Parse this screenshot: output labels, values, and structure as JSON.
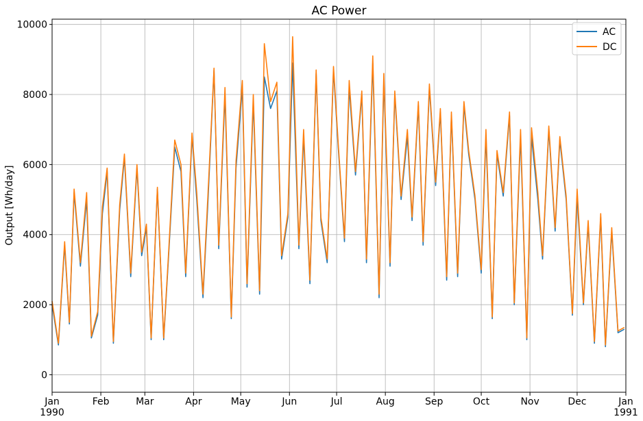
{
  "chart_data": {
    "type": "line",
    "title": "AC Power",
    "xlabel": "",
    "ylabel": "Output [Wh/day]",
    "xlim": [
      "1990-01-01",
      "1991-01-01"
    ],
    "ylim": [
      -500,
      10150
    ],
    "yticks": [
      0,
      2000,
      4000,
      6000,
      8000,
      10000
    ],
    "ytick_labels": [
      "0",
      "2000",
      "4000",
      "6000",
      "8000",
      "10000"
    ],
    "month_ticks": [
      {
        "date": "1990-01-01",
        "label": "Jan",
        "year": "1990"
      },
      {
        "date": "1990-02-01",
        "label": "Feb",
        "year": ""
      },
      {
        "date": "1990-03-01",
        "label": "Mar",
        "year": ""
      },
      {
        "date": "1990-04-01",
        "label": "Apr",
        "year": ""
      },
      {
        "date": "1990-05-01",
        "label": "May",
        "year": ""
      },
      {
        "date": "1990-06-01",
        "label": "Jun",
        "year": ""
      },
      {
        "date": "1990-07-01",
        "label": "Jul",
        "year": ""
      },
      {
        "date": "1990-08-01",
        "label": "Aug",
        "year": ""
      },
      {
        "date": "1990-09-01",
        "label": "Sep",
        "year": ""
      },
      {
        "date": "1990-10-01",
        "label": "Oct",
        "year": ""
      },
      {
        "date": "1990-11-01",
        "label": "Nov",
        "year": ""
      },
      {
        "date": "1990-12-01",
        "label": "Dec",
        "year": ""
      },
      {
        "date": "1991-01-01",
        "label": "Jan",
        "year": "1991"
      }
    ],
    "grid": true,
    "legend_position": "top-right",
    "x": [
      "1990-01-01",
      "1990-01-05",
      "1990-01-09",
      "1990-01-12",
      "1990-01-15",
      "1990-01-19",
      "1990-01-23",
      "1990-01-26",
      "1990-01-30",
      "1990-02-02",
      "1990-02-05",
      "1990-02-09",
      "1990-02-13",
      "1990-02-16",
      "1990-02-20",
      "1990-02-24",
      "1990-02-27",
      "1990-03-02",
      "1990-03-05",
      "1990-03-09",
      "1990-03-13",
      "1990-03-16",
      "1990-03-20",
      "1990-03-24",
      "1990-03-27",
      "1990-03-31",
      "1990-04-03",
      "1990-04-07",
      "1990-04-10",
      "1990-04-14",
      "1990-04-17",
      "1990-04-21",
      "1990-04-25",
      "1990-04-28",
      "1990-05-02",
      "1990-05-05",
      "1990-05-09",
      "1990-05-13",
      "1990-05-16",
      "1990-05-20",
      "1990-05-24",
      "1990-05-27",
      "1990-05-31",
      "1990-06-03",
      "1990-06-07",
      "1990-06-10",
      "1990-06-14",
      "1990-06-18",
      "1990-06-21",
      "1990-06-25",
      "1990-06-29",
      "1990-07-02",
      "1990-07-06",
      "1990-07-09",
      "1990-07-13",
      "1990-07-17",
      "1990-07-20",
      "1990-07-24",
      "1990-07-28",
      "1990-07-31",
      "1990-08-04",
      "1990-08-07",
      "1990-08-11",
      "1990-08-15",
      "1990-08-18",
      "1990-08-22",
      "1990-08-25",
      "1990-08-29",
      "1990-09-02",
      "1990-09-05",
      "1990-09-09",
      "1990-09-12",
      "1990-09-16",
      "1990-09-20",
      "1990-09-23",
      "1990-09-27",
      "1990-10-01",
      "1990-10-04",
      "1990-10-08",
      "1990-10-11",
      "1990-10-15",
      "1990-10-19",
      "1990-10-22",
      "1990-10-26",
      "1990-10-30",
      "1990-11-02",
      "1990-11-06",
      "1990-11-09",
      "1990-11-13",
      "1990-11-17",
      "1990-11-20",
      "1990-11-24",
      "1990-11-28",
      "1990-12-01",
      "1990-12-05",
      "1990-12-08",
      "1990-12-12",
      "1990-12-16",
      "1990-12-19",
      "1990-12-23",
      "1990-12-27",
      "1990-12-31"
    ],
    "series": [
      {
        "name": "AC",
        "color": "#1f77b4",
        "values": [
          2000,
          850,
          3700,
          1450,
          5200,
          3100,
          5000,
          1050,
          1700,
          4600,
          5800,
          900,
          4700,
          6200,
          2800,
          5900,
          3400,
          4200,
          1000,
          5300,
          1000,
          3300,
          6500,
          5800,
          2800,
          6800,
          5000,
          2200,
          4800,
          8700,
          3600,
          8000,
          1600,
          5900,
          8200,
          2500,
          7800,
          2300,
          8500,
          7600,
          8100,
          3300,
          4500,
          8900,
          3600,
          6800,
          2600,
          8600,
          4400,
          3200,
          8700,
          6500,
          3800,
          8200,
          5700,
          8000,
          3200,
          8900,
          2200,
          8400,
          3100,
          8000,
          5000,
          6800,
          4400,
          7700,
          3700,
          8200,
          5400,
          7500,
          2700,
          7400,
          2800,
          7700,
          6300,
          5000,
          2900,
          6800,
          1600,
          6300,
          5100,
          7400,
          2000,
          6800,
          1000,
          6800,
          5000,
          3300,
          7000,
          4100,
          6700,
          5000,
          1700,
          5100,
          2000,
          4300,
          900,
          4500,
          800,
          4100,
          1200,
          1300
        ]
      },
      {
        "name": "DC",
        "color": "#ff7f0e",
        "values": [
          2100,
          900,
          3800,
          1500,
          5300,
          3200,
          5200,
          1100,
          1800,
          4800,
          5900,
          950,
          4850,
          6300,
          2900,
          6000,
          3500,
          4300,
          1050,
          5350,
          1050,
          3400,
          6700,
          6000,
          2900,
          6900,
          5200,
          2300,
          5000,
          8750,
          3700,
          8200,
          1650,
          6100,
          8400,
          2600,
          8000,
          2400,
          9450,
          7800,
          8350,
          3400,
          4600,
          9650,
          3700,
          7000,
          2700,
          8700,
          4500,
          3300,
          8800,
          6600,
          3900,
          8400,
          5800,
          8100,
          3300,
          9100,
          2300,
          8600,
          3200,
          8100,
          5100,
          7000,
          4500,
          7800,
          3800,
          8300,
          5500,
          7600,
          2800,
          7500,
          2900,
          7800,
          6400,
          5100,
          3000,
          7000,
          1650,
          6400,
          5200,
          7500,
          2050,
          7000,
          1050,
          7050,
          5200,
          3400,
          7100,
          4200,
          6800,
          5100,
          1750,
          5300,
          2050,
          4400,
          950,
          4600,
          850,
          4200,
          1250,
          1350
        ]
      }
    ]
  }
}
